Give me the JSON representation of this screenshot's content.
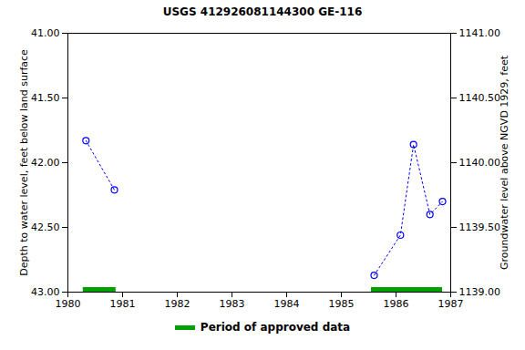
{
  "chart_data": {
    "type": "scatter",
    "title": "USGS 412926081144300 GE-116",
    "x_label": null,
    "y_label": "Depth to water level, feet below land surface",
    "y2_label": "Groundwater level above NGVD 1929, feet",
    "xlim": [
      1980,
      1987
    ],
    "xticks": [
      1980,
      1981,
      1982,
      1983,
      1984,
      1985,
      1986,
      1987
    ],
    "ylim": [
      43,
      41
    ],
    "yticks": [
      {
        "value": 41,
        "label": "41.00"
      },
      {
        "value": 41.5,
        "label": "41.50"
      },
      {
        "value": 42,
        "label": "42.00"
      },
      {
        "value": 42.5,
        "label": "42.50"
      },
      {
        "value": 43,
        "label": "43.00"
      }
    ],
    "y2lim": [
      1139,
      1141
    ],
    "y2ticks": [
      {
        "value": 1141,
        "label": "1141.00"
      },
      {
        "value": 1140.5,
        "label": "1140.50"
      },
      {
        "value": 1140,
        "label": "1140.00"
      },
      {
        "value": 1139.5,
        "label": "1139.50"
      },
      {
        "value": 1139,
        "label": "1139.00"
      }
    ],
    "grid": false,
    "x": [
      1980.33,
      1980.85,
      null,
      1985.6,
      1986.08,
      1986.32,
      1986.62,
      1986.85
    ],
    "values": [
      41.83,
      42.21,
      null,
      42.87,
      42.56,
      41.86,
      42.4,
      42.3
    ],
    "color": "#0000ff",
    "marker": "circle",
    "line_style": "dotted",
    "approved_periods": {
      "name": "Period of approved data",
      "color": "#00a000",
      "ranges": [
        [
          1980.28,
          1980.88
        ],
        [
          1985.55,
          1986.85
        ]
      ]
    }
  }
}
